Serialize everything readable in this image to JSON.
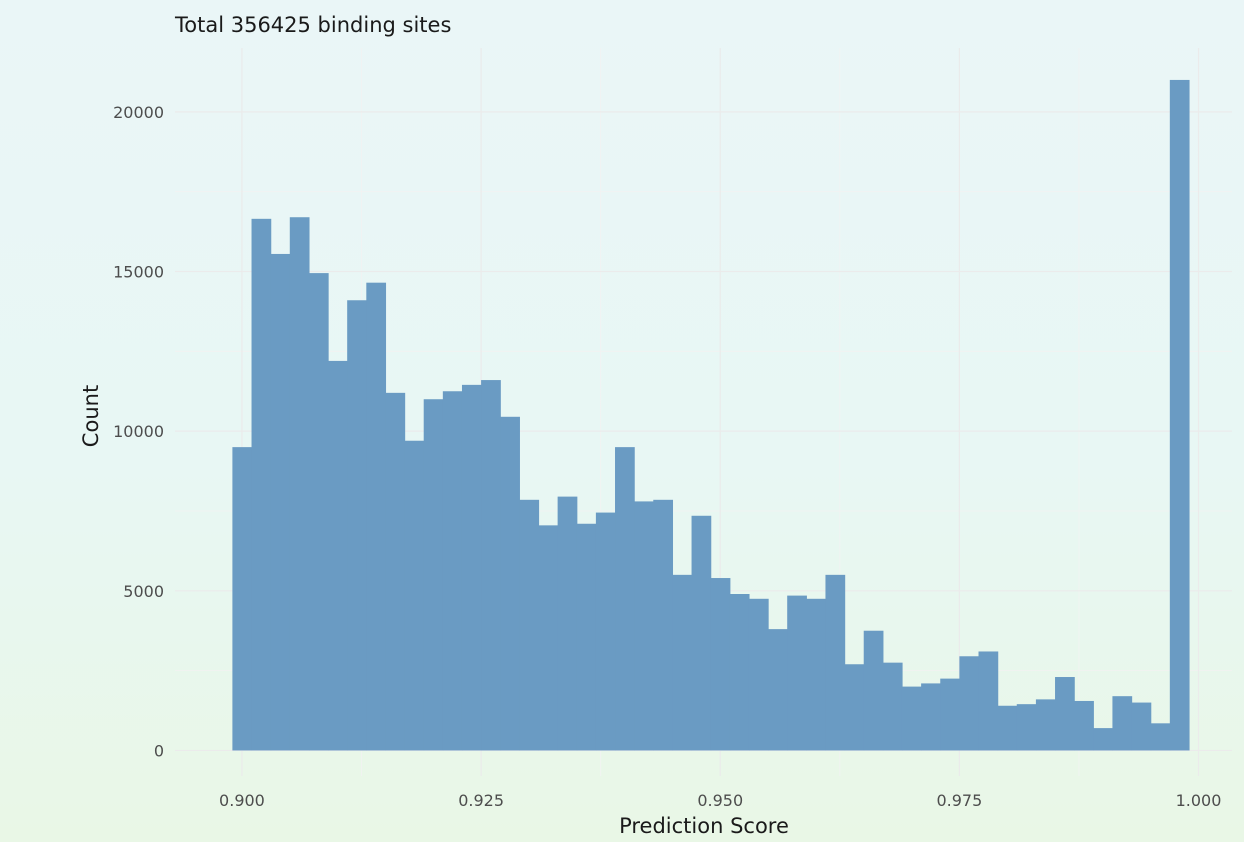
{
  "chart_data": {
    "type": "bar",
    "title": "",
    "subtitle": "Total 356425 binding sites",
    "xlabel": "Prediction Score",
    "ylabel": "Count",
    "bin_width": 0.002,
    "bin_start": 0.899,
    "xlim": [
      0.893,
      1.0035
    ],
    "ylim": [
      -800,
      22000
    ],
    "x_ticks": [
      0.9,
      0.925,
      0.95,
      0.975,
      1.0
    ],
    "x_tick_labels": [
      "0.900",
      "0.925",
      "0.950",
      "0.975",
      "1.000"
    ],
    "y_ticks": [
      0,
      5000,
      10000,
      15000,
      20000
    ],
    "y_tick_labels": [
      "0",
      "5000",
      "10000",
      "15000",
      "20000"
    ],
    "grid": true,
    "legend": "none",
    "bar_color": "#6a9bc3",
    "values": [
      9500,
      16650,
      15550,
      16700,
      14950,
      12200,
      14100,
      14650,
      11200,
      9700,
      11000,
      11250,
      11450,
      11600,
      10450,
      7850,
      7050,
      7950,
      7100,
      7450,
      9500,
      7800,
      7850,
      5500,
      7350,
      5400,
      4900,
      4750,
      3800,
      4850,
      4750,
      5500,
      2700,
      3750,
      2750,
      2000,
      2100,
      2250,
      2950,
      3100,
      1400,
      1450,
      1600,
      2300,
      1550,
      700,
      1700,
      1500,
      850,
      21000
    ]
  }
}
